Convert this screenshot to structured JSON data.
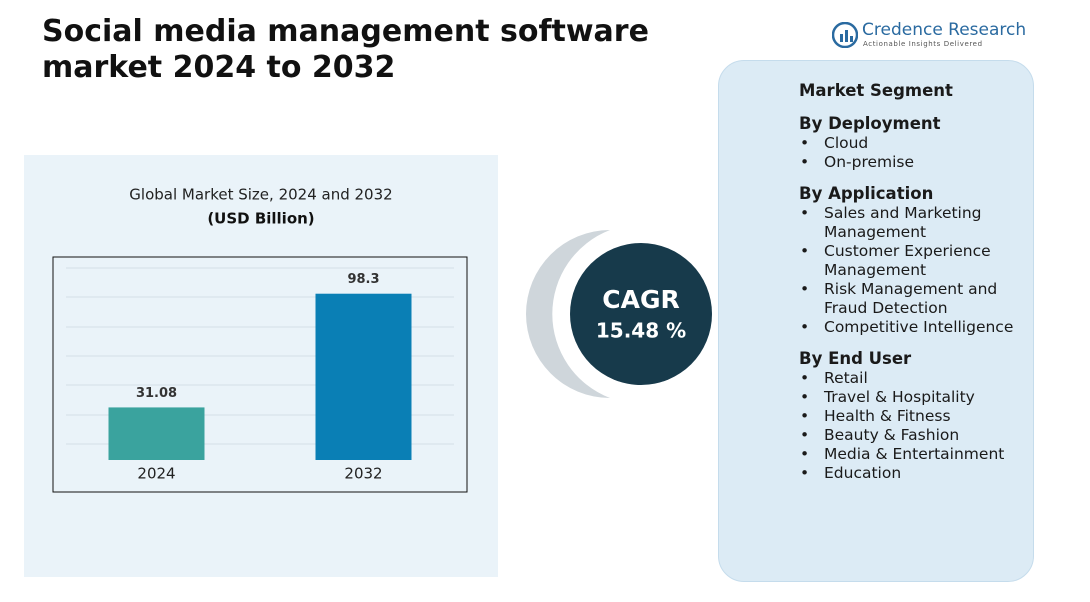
{
  "header": {
    "title": "Social media management software market 2024  to 2032"
  },
  "logo": {
    "name": "Credence Research",
    "tagline": "Actionable Insights Delivered"
  },
  "chart_data": {
    "type": "bar",
    "title": "Global Market Size, 2024 and 2032",
    "subtitle": "(USD Billion)",
    "categories": [
      "2024",
      "2032"
    ],
    "values": [
      31.08,
      98.3
    ],
    "colors": [
      "#3aa39e",
      "#0a7fb5"
    ],
    "ylim": [
      0,
      120
    ]
  },
  "cagr": {
    "label": "CAGR",
    "value": "15.48 %"
  },
  "segments": {
    "title": "Market Segment",
    "groups": [
      {
        "heading": "By Deployment",
        "items": [
          "Cloud",
          "On-premise"
        ]
      },
      {
        "heading": "By Application",
        "items": [
          "Sales and Marketing Management",
          "Customer Experience Management",
          "Risk Management and Fraud Detection",
          "Competitive Intelligence"
        ]
      },
      {
        "heading": "By End User",
        "items": [
          "Retail",
          "Travel & Hospitality",
          "Health & Fitness",
          "Beauty & Fashion",
          "Media & Entertainment",
          "Education"
        ]
      }
    ]
  }
}
